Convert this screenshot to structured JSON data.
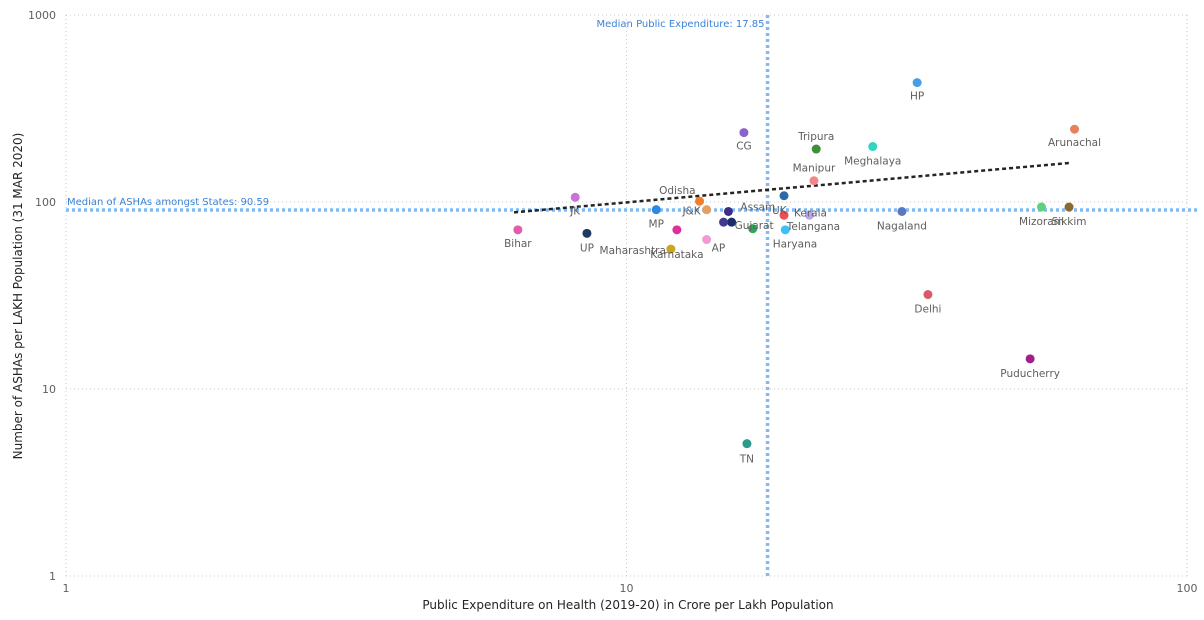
{
  "chart_data": {
    "type": "scatter",
    "xlabel": "Public Expenditure on Health (2019-20) in Crore per Lakh Population",
    "ylabel": "Number of ASHAs per LAKH Population (31 MAR 2020)",
    "x_scale": "log",
    "y_scale": "log",
    "xlim": [
      1,
      100
    ],
    "ylim": [
      1,
      1000
    ],
    "x_ticks": [
      1,
      10,
      100
    ],
    "y_ticks": [
      1,
      10,
      100,
      1000
    ],
    "grid": true,
    "reference_lines": [
      {
        "axis": "x",
        "value": 17.85,
        "label": "Median Public Expenditure: 17.85",
        "color": "#7fbcf5"
      },
      {
        "axis": "y",
        "value": 90.59,
        "label": "Median of ASHAs amongst States: 90.59",
        "color": "#7fbcf5"
      }
    ],
    "trend_line": {
      "x": [
        6.3,
        62
      ],
      "y": [
        88,
        162
      ],
      "color": "#252423"
    },
    "points": [
      {
        "label": "HP",
        "x": 33,
        "y": 435,
        "color": "#4a9ee8"
      },
      {
        "label": "Arunachal",
        "x": 63,
        "y": 245,
        "color": "#e6825a"
      },
      {
        "label": "CG",
        "x": 16.2,
        "y": 235,
        "color": "#8a63c9"
      },
      {
        "label": "Meghalaya",
        "x": 27.5,
        "y": 198,
        "color": "#33d4c0"
      },
      {
        "label": "Tripura",
        "x": 21.8,
        "y": 192,
        "color": "#3f8f3a"
      },
      {
        "label": "Manipur",
        "x": 21.6,
        "y": 130,
        "color": "#f08888"
      },
      {
        "label": "Kerala",
        "x": 19.1,
        "y": 108,
        "color": "#2d6aa7"
      },
      {
        "label": "Odisha",
        "x": 13.5,
        "y": 101,
        "color": "#f07d2c"
      },
      {
        "label": "JK",
        "x": 8.1,
        "y": 106,
        "color": "#c774d4"
      },
      {
        "label": "MP",
        "x": 11.3,
        "y": 91,
        "color": "#2b8ae0"
      },
      {
        "label": "J&K",
        "x": 13.9,
        "y": 91,
        "color": "#e3a060"
      },
      {
        "label": "Assam",
        "x": 15.2,
        "y": 89,
        "color": "#3e2c8a"
      },
      {
        "label": "Gujarat",
        "x": 15.4,
        "y": 78,
        "color": "#1a2d6a"
      },
      {
        "label": "UK",
        "x": 19.1,
        "y": 85,
        "color": "#ef4e4e"
      },
      {
        "label": "Telangana",
        "x": 21.2,
        "y": 85,
        "color": "#b8a5f2"
      },
      {
        "label": "Nagaland",
        "x": 31,
        "y": 89,
        "color": "#5a77c2"
      },
      {
        "label": "Mizoram",
        "x": 55,
        "y": 94,
        "color": "#5fd17a"
      },
      {
        "label": "Sikkim",
        "x": 61.6,
        "y": 94,
        "color": "#8a6a30"
      },
      {
        "label": "Bihar",
        "x": 6.4,
        "y": 71,
        "color": "#e25da8"
      },
      {
        "label": "UP",
        "x": 8.5,
        "y": 68,
        "color": "#1e3a60"
      },
      {
        "label": "Maharashtra",
        "x": 12,
        "y": 56,
        "color": "#c9a820"
      },
      {
        "label": "Karnataka",
        "x": 12.3,
        "y": 71,
        "color": "#e0309a"
      },
      {
        "label": "AP",
        "x": 13.9,
        "y": 63,
        "color": "#f29ad4"
      },
      {
        "label": "Haryana",
        "x": 16.8,
        "y": 72,
        "color": "#2aa85a"
      },
      {
        "label": "",
        "x": 19.2,
        "y": 71,
        "color": "#3cc0f5"
      },
      {
        "label": "",
        "x": 14.9,
        "y": 78,
        "color": "#3e3a8e"
      },
      {
        "label": "Delhi",
        "x": 34.5,
        "y": 32,
        "color": "#d95a6a"
      },
      {
        "label": "Puducherry",
        "x": 52.5,
        "y": 14.5,
        "color": "#a0208a"
      },
      {
        "label": "TN",
        "x": 16.4,
        "y": 5.1,
        "color": "#2a9a8a"
      }
    ]
  }
}
